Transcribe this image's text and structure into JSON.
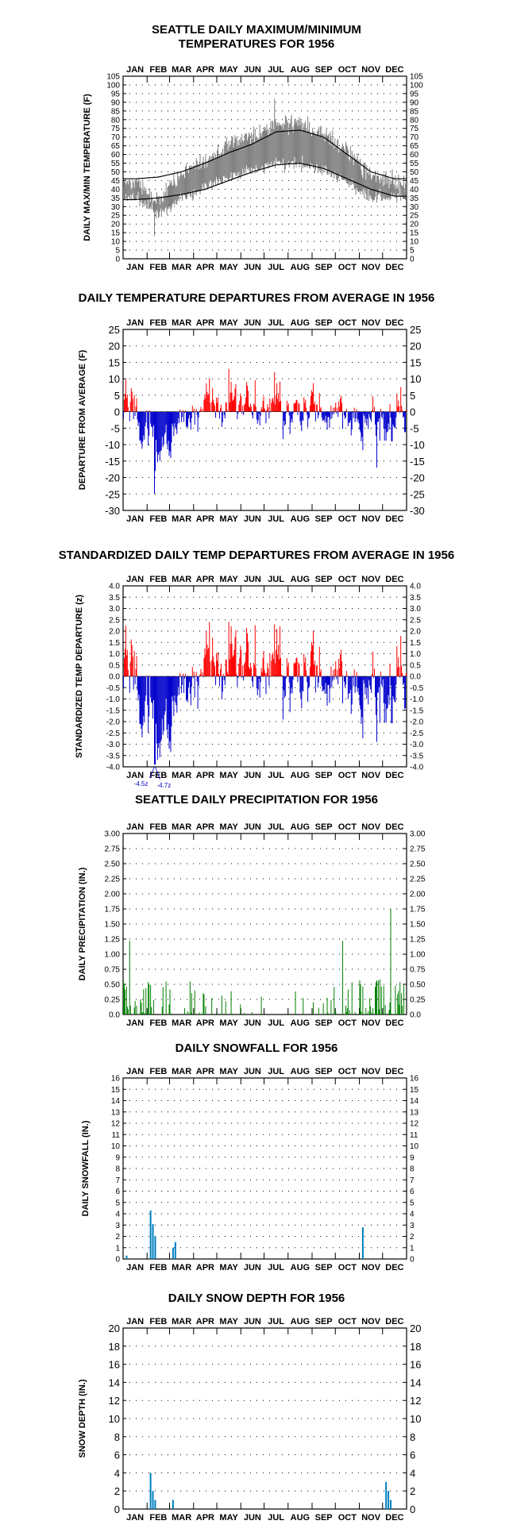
{
  "months": [
    "JAN",
    "FEB",
    "MAR",
    "APR",
    "MAY",
    "JUN",
    "JUL",
    "AUG",
    "SEP",
    "OCT",
    "NOV",
    "DEC"
  ],
  "colors": {
    "maxmin_range": "#808080",
    "normal_lines": "#000000",
    "positive": "#ff0000",
    "negative": "#0000cc",
    "precip": "#008000",
    "snow": "#0080c0",
    "grid_dots": "#000000"
  },
  "chart_data": [
    {
      "type": "area",
      "title_line1": "SEATTLE DAILY MAXIMUM/MINIMUM",
      "title_line2": "TEMPERATURES FOR 1956",
      "ylabel": "DAILY MAX/MIN TEMPERATURE (F)",
      "ylim": [
        0,
        105
      ],
      "yticks": [
        0,
        5,
        10,
        15,
        20,
        25,
        30,
        35,
        40,
        45,
        50,
        55,
        60,
        65,
        70,
        75,
        80,
        85,
        90,
        95,
        100,
        105
      ],
      "x": "day of year 1956 (1-366)",
      "series": [
        {
          "name": "",
          "role": "normal_max",
          "values_monthly_knots": [
            46,
            47,
            50,
            55,
            61,
            66,
            73,
            74,
            70,
            60,
            50,
            46
          ]
        },
        {
          "name": "",
          "role": "normal_min",
          "values_monthly_knots": [
            34,
            35,
            37,
            40,
            45,
            50,
            54,
            55,
            52,
            46,
            40,
            36
          ]
        },
        {
          "name": "",
          "role": "daily_max_approx_monthly",
          "values": [
            44,
            34,
            49,
            57,
            66,
            70,
            78,
            77,
            72,
            62,
            48,
            44
          ]
        },
        {
          "name": "",
          "role": "daily_min_approx_monthly",
          "values": [
            35,
            25,
            35,
            40,
            47,
            51,
            55,
            55,
            51,
            44,
            35,
            35
          ]
        }
      ],
      "notable_values": {
        "max_peak": 92,
        "min_low": 13
      }
    },
    {
      "type": "bar",
      "title": "DAILY TEMPERATURE DEPARTURES FROM AVERAGE IN 1956",
      "ylabel": "DEPARTURE FROM AVERAGE (F)",
      "ylim": [
        -30,
        25
      ],
      "yticks": [
        25,
        20,
        15,
        10,
        5,
        0,
        -5,
        -10,
        -15,
        -20,
        -25,
        -30
      ],
      "monthly_mean_departure": [
        -1.5,
        -9.0,
        -3.0,
        0.5,
        3.0,
        -0.5,
        1.0,
        1.0,
        0.5,
        -1.0,
        -2.5,
        -1.0
      ],
      "extremes": {
        "max": 13,
        "min": -25
      }
    },
    {
      "type": "bar",
      "title": "STANDARDIZED DAILY TEMP DEPARTURES FROM AVERAGE IN 1956",
      "ylabel": "STANDARDIZED TEMP DEPARTURE (z)",
      "ylim": [
        -4.0,
        4.0
      ],
      "yticks": [
        "4.0",
        "3.5",
        "3.0",
        "2.5",
        "2.0",
        "1.5",
        "1.0",
        "0.5",
        "0.0",
        "-0.5",
        "-1.0",
        "-1.5",
        "-2.0",
        "-2.5",
        "-3.0",
        "-3.5",
        "-4.0"
      ],
      "monthly_mean_departure": [
        -0.4,
        -2.2,
        -0.7,
        0.1,
        0.8,
        -0.1,
        0.3,
        0.2,
        0.1,
        -0.2,
        -0.6,
        -0.2
      ],
      "extremes": {
        "max": 2.4,
        "min": -4.7
      },
      "annotations": [
        "-4.5z",
        "-4.7z"
      ]
    },
    {
      "type": "bar",
      "title": "SEATTLE DAILY PRECIPITATION FOR 1956",
      "ylabel": "DAILY PRECIPITATION (IN.)",
      "ylim": [
        0,
        3.0
      ],
      "yticks": [
        "3.00",
        "2.75",
        "2.50",
        "2.25",
        "2.00",
        "1.75",
        "1.50",
        "1.25",
        "1.00",
        "0.75",
        "0.50",
        "0.25",
        "0.0"
      ],
      "max_daily": 1.75,
      "peaks": [
        {
          "month": "JAN",
          "value": 1.22
        },
        {
          "month": "OCT",
          "value": 1.22
        },
        {
          "month": "DEC",
          "value": 1.75
        }
      ]
    },
    {
      "type": "bar",
      "title": "DAILY SNOWFALL FOR 1956",
      "ylabel": "DAILY SNOWFALL (IN.)",
      "ylim": [
        0,
        16
      ],
      "yticks": [
        "16",
        "15",
        "14",
        "13",
        "12",
        "11",
        "10",
        "9",
        "8",
        "7",
        "6",
        "5",
        "4",
        "3",
        "2",
        "1",
        "0"
      ],
      "events": [
        {
          "month": "JAN",
          "value": 0.3
        },
        {
          "month": "FEB",
          "value": 4.3
        },
        {
          "month": "FEB",
          "value": 3.1
        },
        {
          "month": "FEB",
          "value": 2.0
        },
        {
          "month": "MAR",
          "value": 1.0
        },
        {
          "month": "MAR",
          "value": 1.5
        },
        {
          "month": "NOV",
          "value": 2.8
        }
      ]
    },
    {
      "type": "bar",
      "title": "DAILY SNOW DEPTH FOR 1956",
      "ylabel": "SNOW DEPTH (IN.)",
      "ylim": [
        0,
        20
      ],
      "yticks": [
        "20",
        "18",
        "16",
        "14",
        "12",
        "10",
        "8",
        "6",
        "4",
        "2",
        "0"
      ],
      "events": [
        {
          "month": "FEB",
          "value": 4
        },
        {
          "month": "FEB",
          "value": 2
        },
        {
          "month": "FEB",
          "value": 1
        },
        {
          "month": "MAR",
          "value": 1
        },
        {
          "month": "DEC",
          "value": 3
        },
        {
          "month": "DEC",
          "value": 2
        },
        {
          "month": "DEC",
          "value": 1
        }
      ]
    }
  ]
}
